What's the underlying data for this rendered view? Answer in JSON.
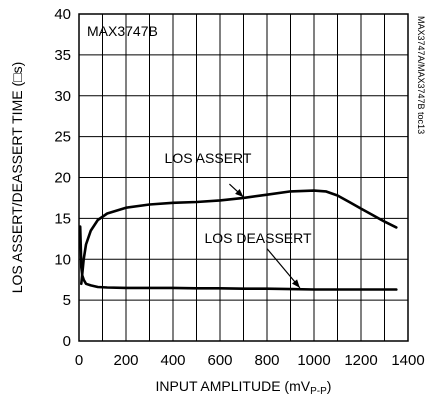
{
  "chart_data": {
    "type": "line",
    "title": "",
    "chart_id": "MAX3747B",
    "side_label": "MAX3747A/MAX3747B toc13",
    "xlabel": "INPUT AMPLITUDE (mV",
    "xlabel_sub": "P-P",
    "xlabel_close": ")",
    "ylabel": "LOS ASSERT/DEASSERT TIME (□s)",
    "xlim": [
      0,
      1400
    ],
    "ylim": [
      0,
      40
    ],
    "x_ticks": [
      0,
      200,
      400,
      600,
      800,
      1000,
      1200,
      1400
    ],
    "y_ticks": [
      0,
      5,
      10,
      15,
      20,
      25,
      30,
      35,
      40
    ],
    "grid": true,
    "series": [
      {
        "name": "LOS ASSERT",
        "x": [
          10,
          20,
          30,
          50,
          80,
          120,
          200,
          300,
          400,
          500,
          600,
          700,
          800,
          900,
          1000,
          1050,
          1100,
          1150,
          1200,
          1250,
          1300,
          1350
        ],
        "y": [
          7.0,
          10.0,
          11.8,
          13.5,
          14.8,
          15.6,
          16.3,
          16.7,
          16.9,
          17.0,
          17.2,
          17.5,
          17.9,
          18.3,
          18.4,
          18.3,
          17.8,
          17.0,
          16.2,
          15.4,
          14.6,
          13.9
        ]
      },
      {
        "name": "LOS DEASSERT",
        "x": [
          5,
          8,
          10,
          14,
          20,
          30,
          50,
          80,
          120,
          200,
          300,
          400,
          500,
          600,
          700,
          800,
          900,
          1000,
          1100,
          1200,
          1300,
          1350
        ],
        "y": [
          14.0,
          11.0,
          9.0,
          8.0,
          7.5,
          7.0,
          6.8,
          6.6,
          6.55,
          6.5,
          6.5,
          6.5,
          6.45,
          6.45,
          6.4,
          6.4,
          6.35,
          6.3,
          6.3,
          6.3,
          6.3,
          6.3
        ]
      }
    ],
    "annotations": [
      {
        "text": "LOS ASSERT",
        "arrow_from": [
          640,
          19.2
        ],
        "arrow_to": [
          700,
          17.6
        ]
      },
      {
        "text": "LOS DEASSERT",
        "arrow_from": [
          800,
          11.3
        ],
        "arrow_to": [
          940,
          6.5
        ]
      }
    ]
  }
}
